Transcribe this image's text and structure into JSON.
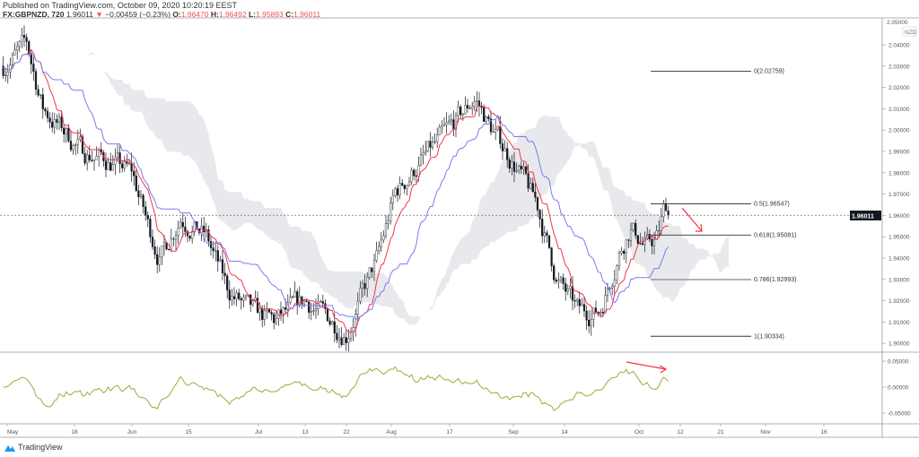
{
  "header": {
    "published": "Published on TradingView.com, October 09, 2020 10:20:19 EEST",
    "symbol": "FX:GBPNZD, 720",
    "last": "1.96011",
    "change": "−0.00459 (−0.23%)",
    "o_label": "O:",
    "o": "1.96470",
    "h_label": "H:",
    "h": "1.96492",
    "l_label": "L:",
    "l": "1.95893",
    "c_label": "C:",
    "c": "1.96011"
  },
  "currency_badge": "NZD",
  "logo": "TradingView",
  "colors": {
    "up": "#131722",
    "down": "#131722",
    "tenkan": "#f23645",
    "kijun": "#7b7bf0",
    "cloud": "#e6e7ea",
    "oscillator": "#a8a53a",
    "arrow": "#f23645"
  },
  "chart_data": {
    "type": "candlestick",
    "symbol": "GBPNZD",
    "interval": "720",
    "price_axis": {
      "ticks": [
        "2.04000",
        "2.03000",
        "2.02000",
        "2.01000",
        "2.00000",
        "1.99000",
        "1.98000",
        "1.97000",
        "1.96000",
        "1.95000",
        "1.94000",
        "1.93000",
        "1.92000",
        "1.91000",
        "1.90000"
      ],
      "top_partial": "2.05000",
      "range": [
        1.895,
        2.05
      ]
    },
    "last_price": "1.96011",
    "time_axis": [
      {
        "label": "May",
        "date": "2020-05-01"
      },
      {
        "label": "18",
        "date": "2020-05-18"
      },
      {
        "label": "Jun",
        "date": "2020-06-01"
      },
      {
        "label": "15",
        "date": "2020-06-15"
      },
      {
        "label": "Jul",
        "date": "2020-07-01"
      },
      {
        "label": "13",
        "date": "2020-07-13"
      },
      {
        "label": "22",
        "date": "2020-07-22"
      },
      {
        "label": "Aug",
        "date": "2020-08-01"
      },
      {
        "label": "17",
        "date": "2020-08-17"
      },
      {
        "label": "Sep",
        "date": "2020-09-01"
      },
      {
        "label": "14",
        "date": "2020-09-14"
      },
      {
        "label": "Oct",
        "date": "2020-10-01"
      },
      {
        "label": "12",
        "date": "2020-10-12"
      },
      {
        "label": "21",
        "date": "2020-10-21"
      },
      {
        "label": "Nov",
        "date": "2020-11-01"
      },
      {
        "label": "16",
        "date": "2020-11-16"
      }
    ],
    "close_path": [
      [
        "2020-04-30",
        2.03
      ],
      [
        "2020-05-06",
        2.04
      ],
      [
        "2020-05-10",
        2.01
      ],
      [
        "2020-05-20",
        1.99
      ],
      [
        "2020-05-27",
        1.985
      ],
      [
        "2020-06-01",
        1.98
      ],
      [
        "2020-06-05",
        1.955
      ],
      [
        "2020-06-08",
        1.94
      ],
      [
        "2020-06-13",
        1.96
      ],
      [
        "2020-06-19",
        1.95
      ],
      [
        "2020-06-24",
        1.925
      ],
      [
        "2020-06-29",
        1.915
      ],
      [
        "2020-07-05",
        1.91
      ],
      [
        "2020-07-13",
        1.92
      ],
      [
        "2020-07-22",
        1.905
      ],
      [
        "2020-07-25",
        1.92
      ],
      [
        "2020-07-29",
        1.94
      ],
      [
        "2020-08-02",
        1.97
      ],
      [
        "2020-08-09",
        1.985
      ],
      [
        "2020-08-17",
        2.0
      ],
      [
        "2020-08-23",
        2.015
      ],
      [
        "2020-08-27",
        2.0
      ],
      [
        "2020-09-01",
        1.985
      ],
      [
        "2020-09-07",
        1.965
      ],
      [
        "2020-09-12",
        1.93
      ],
      [
        "2020-09-17",
        1.915
      ],
      [
        "2020-09-22",
        1.915
      ],
      [
        "2020-09-26",
        1.94
      ],
      [
        "2020-09-29",
        1.955
      ],
      [
        "2020-10-03",
        1.945
      ],
      [
        "2020-10-06",
        1.95
      ],
      [
        "2020-10-08",
        1.965
      ],
      [
        "2020-10-09",
        1.96011
      ]
    ],
    "fibonacci": [
      {
        "label": "0(2.02759)",
        "price": 2.02759
      },
      {
        "label": "0.5(1.96547)",
        "price": 1.96547
      },
      {
        "label": "0.618(1.95081)",
        "price": 1.95081
      },
      {
        "label": "0.786(1.92993)",
        "price": 1.92993
      },
      {
        "label": "1(1.90334)",
        "price": 1.90334
      }
    ],
    "oscillator": {
      "ticks": [
        "0.05000",
        "0.00000",
        "-0.05000"
      ],
      "range": [
        -0.075,
        0.075
      ]
    }
  }
}
